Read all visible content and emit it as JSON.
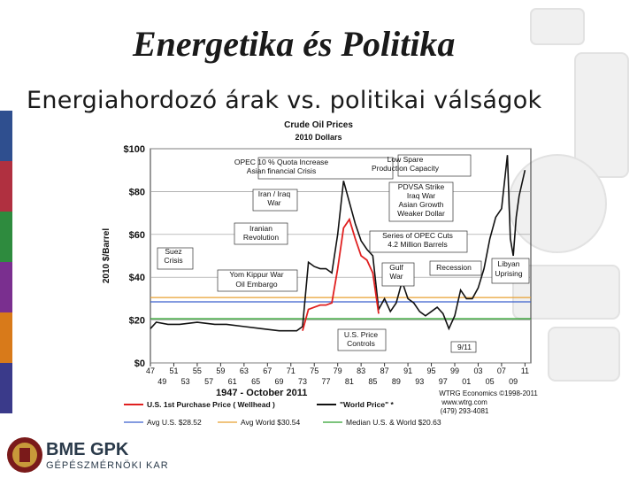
{
  "slide": {
    "title": "Energetika és Politika",
    "subtitle": "Energiahordozó árak vs. politikai válságok"
  },
  "logo": {
    "main_text": "BME GPK",
    "sub_text": "GÉPÉSZMÉRNÖKI KAR"
  },
  "colors": {
    "us_price": "#e02020",
    "world_price": "#111111",
    "avg_us": "#3a5fcd",
    "avg_world": "#e8a030",
    "median": "#2ea02e",
    "stripe_colors": [
      "#2f4f8f",
      "#b03040",
      "#2e8b3e",
      "#7a2f8f",
      "#d87a1a",
      "#3a3a8a"
    ]
  },
  "chart_data": {
    "type": "line",
    "title": "Crude Oil Prices",
    "subtitle": "2010 Dollars",
    "ylabel": "2010 $/Barrel",
    "xlabel": "1947 - October 2011",
    "ylim": [
      0,
      100
    ],
    "xlim": [
      1947,
      2012
    ],
    "y_ticks": [
      "$0",
      "$20",
      "$40",
      "$60",
      "$80",
      "$100"
    ],
    "x_ticks_top": [
      "47",
      "51",
      "55",
      "59",
      "63",
      "67",
      "71",
      "75",
      "79",
      "83",
      "87",
      "91",
      "95",
      "99",
      "03",
      "07",
      "11"
    ],
    "x_ticks_bottom": [
      "49",
      "53",
      "57",
      "61",
      "65",
      "69",
      "73",
      "77",
      "81",
      "85",
      "89",
      "93",
      "97",
      "01",
      "05",
      "09"
    ],
    "credits": [
      "WTRG Economics ©1998-2011",
      "www.wtrg.com",
      "(479) 293-4081"
    ],
    "legend": [
      {
        "label": "U.S. 1st Purchase Price ( Wellhead )",
        "key": "us"
      },
      {
        "label": "\"World Price\" *",
        "key": "world"
      },
      {
        "label": "Avg U.S. $28.52",
        "key": "avg_us"
      },
      {
        "label": "Avg World $30.54",
        "key": "avg_world"
      },
      {
        "label": "Median U.S. & World $20.63",
        "key": "median"
      }
    ],
    "reference_lines": [
      {
        "key": "avg_us",
        "value": 28.52
      },
      {
        "key": "avg_world",
        "value": 30.54
      },
      {
        "key": "median",
        "value": 20.63
      }
    ],
    "series": [
      {
        "key": "world",
        "x": [
          1947,
          1948,
          1950,
          1952,
          1955,
          1958,
          1960,
          1963,
          1966,
          1969,
          1972,
          1973,
          1974,
          1975,
          1976,
          1977,
          1978,
          1979,
          1980,
          1981,
          1982,
          1983,
          1984,
          1985,
          1986,
          1987,
          1988,
          1989,
          1990,
          1991,
          1992,
          1993,
          1994,
          1995,
          1996,
          1997,
          1998,
          1999,
          2000,
          2001,
          2002,
          2003,
          2004,
          2005,
          2006,
          2007,
          2008,
          2008.5,
          2009,
          2009.5,
          2010,
          2011
        ],
        "y": [
          16,
          19,
          18,
          18,
          19,
          18,
          18,
          17,
          16,
          15,
          15,
          17,
          47,
          45,
          44,
          44,
          42,
          60,
          85,
          75,
          65,
          57,
          53,
          50,
          25,
          30,
          24,
          28,
          38,
          30,
          28,
          24,
          22,
          24,
          26,
          23,
          16,
          22,
          34,
          30,
          30,
          35,
          44,
          58,
          68,
          72,
          97,
          58,
          50,
          68,
          78,
          90
        ]
      },
      {
        "key": "us",
        "x": [
          1973,
          1974,
          1975,
          1976,
          1977,
          1978,
          1979,
          1980,
          1981,
          1982,
          1983,
          1984,
          1985,
          1986
        ],
        "y": [
          15,
          25,
          26,
          27,
          27,
          28,
          44,
          63,
          67,
          58,
          50,
          48,
          42,
          23
        ]
      }
    ],
    "annotations": [
      "OPEC 10 % Quota Increase",
      "Asian financial Crisis",
      "Low Spare",
      "Production Capacity",
      "Iran / Iraq",
      "War",
      "PDVSA Strike",
      "Iraq War",
      "Asian Growth",
      "Weaker Dollar",
      "Iranian",
      "Revolution",
      "Series of OPEC Cuts",
      "4.2 Million Barrels",
      "Suez",
      "Crisis",
      "Yom Kippur War",
      "Oil Embargo",
      "Gulf",
      "War",
      "Recession",
      "Libyan",
      "Uprising",
      "U.S. Price",
      "Controls",
      "9/11"
    ]
  }
}
